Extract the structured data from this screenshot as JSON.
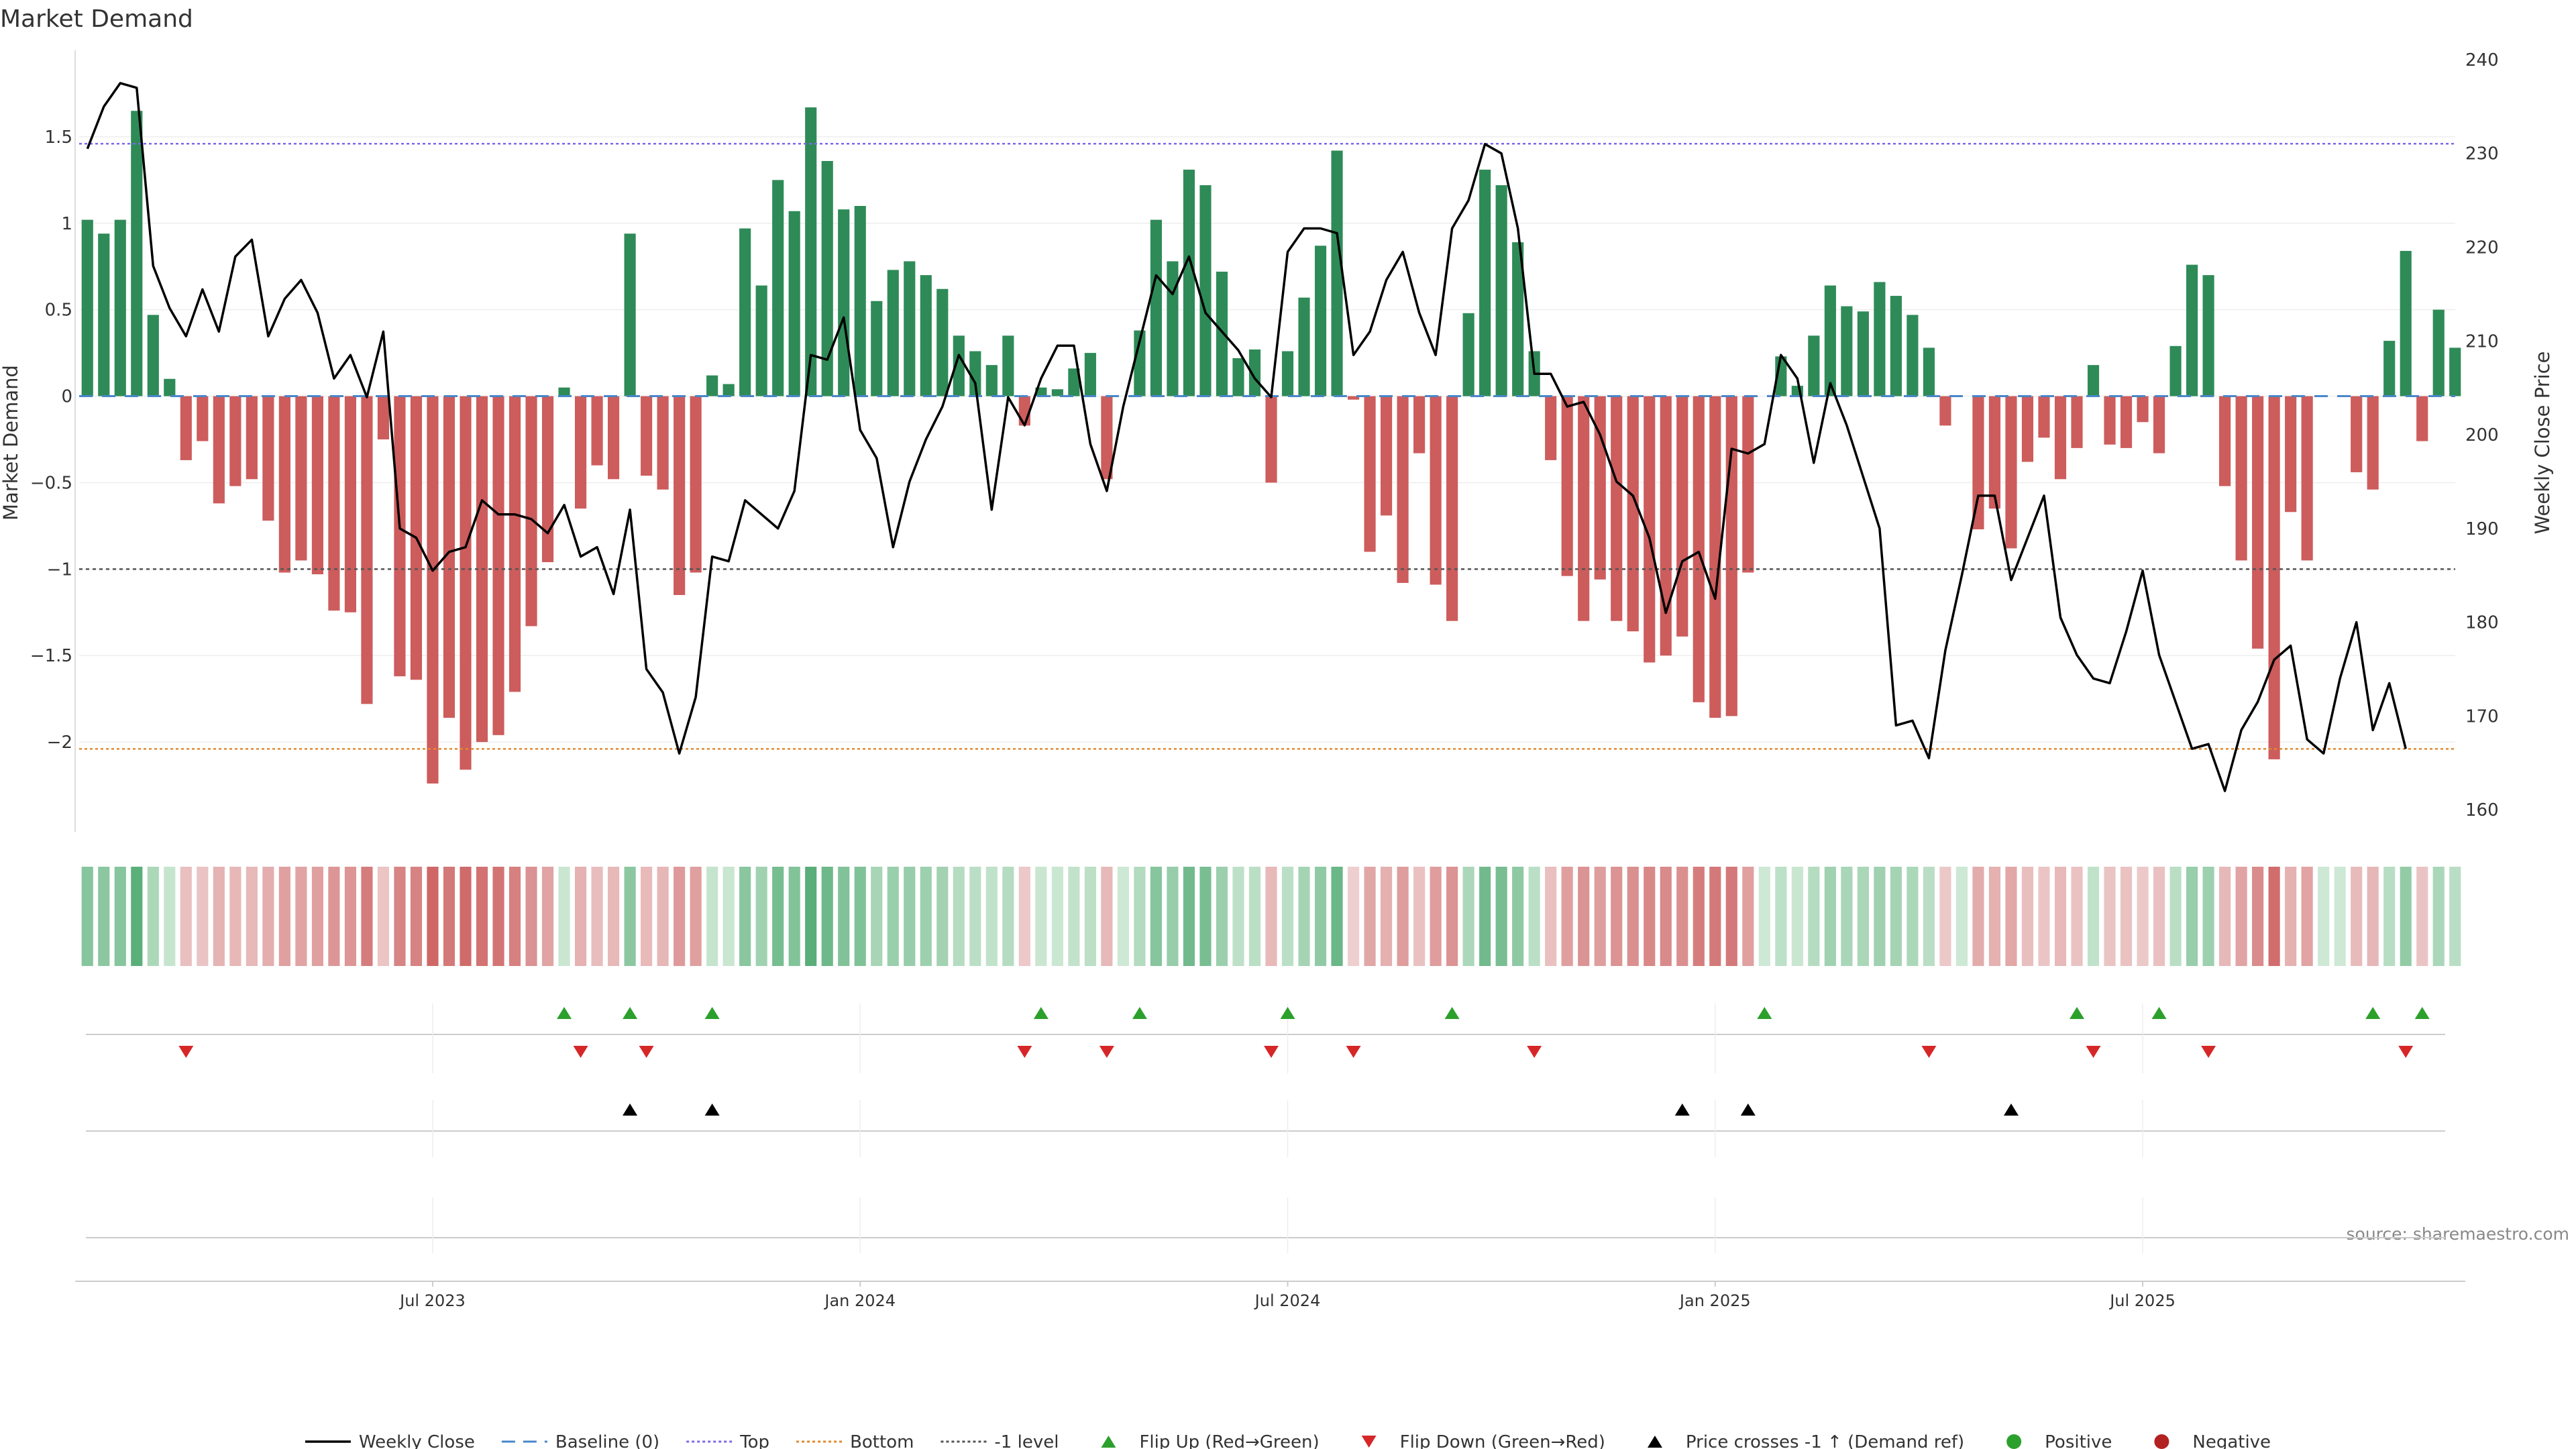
{
  "chart_data": {
    "type": "bar",
    "title": "Market Demand",
    "ylabel": "Market Demand",
    "y2label": "Weekly Close Price",
    "source": "source: sharemaestro.com",
    "ylim": [
      -2.5,
      2.0
    ],
    "y2lim": [
      158,
      241
    ],
    "y_ticks": [
      1.5,
      1,
      0.5,
      0,
      -0.5,
      -1,
      -1.5,
      -2
    ],
    "y_tick_labels": [
      "1.5",
      "1",
      "0.5",
      "0",
      "−0.5",
      "−1",
      "−1.5",
      "−2"
    ],
    "y2_ticks": [
      160,
      170,
      180,
      190,
      200,
      210,
      220,
      230,
      240
    ],
    "x_ticks": [
      {
        "label": "Jul 2023",
        "week": 21
      },
      {
        "label": "Jan 2024",
        "week": 47
      },
      {
        "label": "Jul 2024",
        "week": 73
      },
      {
        "label": "Jan 2025",
        "week": 99
      },
      {
        "label": "Jul 2025",
        "week": 125
      }
    ],
    "reference_lines": {
      "top": 1.46,
      "bottom": -2.04,
      "minus_one": -1,
      "baseline": 0
    },
    "colors": {
      "positive": "#2e8b57",
      "negative": "#cd5c5c",
      "price": "#000000",
      "top": "#7b68ee",
      "bottom": "#e08a2e",
      "minus_one": "#555555",
      "baseline": "#4a86c8",
      "flip_up": "#2ca02c",
      "flip_down": "#d62728",
      "cross": "#000000",
      "pos_dot": "#2ca02c",
      "neg_dot": "#b22222"
    },
    "demand": [
      1.02,
      0.94,
      1.02,
      1.65,
      0.47,
      0.1,
      -0.37,
      -0.26,
      -0.62,
      -0.52,
      -0.48,
      -0.72,
      -1.02,
      -0.95,
      -1.03,
      -1.24,
      -1.25,
      -1.78,
      -0.25,
      -1.62,
      -1.64,
      -2.24,
      -1.86,
      -2.16,
      -2.0,
      -1.96,
      -1.71,
      -1.33,
      -0.96,
      0.05,
      -0.65,
      -0.4,
      -0.48,
      0.94,
      -0.46,
      -0.54,
      -1.15,
      -1.02,
      0.12,
      0.07,
      0.97,
      0.64,
      1.25,
      1.07,
      1.67,
      1.36,
      1.08,
      1.1,
      0.55,
      0.73,
      0.78,
      0.7,
      0.62,
      0.35,
      0.26,
      0.18,
      0.35,
      -0.17,
      0.05,
      0.04,
      0.16,
      0.25,
      -0.48,
      0,
      0.38,
      1.02,
      0.78,
      1.31,
      1.22,
      0.72,
      0.22,
      0.27,
      -0.5,
      0.26,
      0.57,
      0.87,
      1.42,
      -0.02,
      -0.9,
      -0.69,
      -1.08,
      -0.33,
      -1.09,
      -1.3,
      0.48,
      1.31,
      1.22,
      0.89,
      0.26,
      -0.37,
      -1.04,
      -1.3,
      -1.06,
      -1.3,
      -1.36,
      -1.54,
      -1.5,
      -1.39,
      -1.77,
      -1.86,
      -1.85,
      -1.02,
      0,
      0.23,
      0.06,
      0.35,
      0.64,
      0.52,
      0.49,
      0.66,
      0.58,
      0.47,
      0.28,
      -0.17,
      0,
      -0.77,
      -0.65,
      -0.88,
      -0.38,
      -0.24,
      -0.48,
      -0.3,
      0.18,
      -0.28,
      -0.3,
      -0.15,
      -0.33,
      0.29,
      0.76,
      0.7,
      -0.52,
      -0.95,
      -1.46,
      -2.1,
      -0.67,
      -0.95,
      0,
      0,
      -0.44,
      -0.54,
      0.32,
      0.84,
      -0.26,
      0.5,
      0.28
    ],
    "price": [
      230.5,
      235,
      237.5,
      237,
      218,
      213.5,
      210.5,
      215.5,
      211,
      219,
      220.8,
      210.5,
      214.5,
      216.5,
      213,
      206,
      208.5,
      204,
      211,
      190,
      189,
      185.5,
      187.5,
      188,
      193,
      191.5,
      191.5,
      191,
      189.5,
      192.5,
      187,
      188,
      183,
      192,
      175,
      172.5,
      166,
      172,
      187,
      186.5,
      193,
      191.5,
      190,
      194,
      208.5,
      208,
      212.5,
      200.5,
      197.5,
      188,
      195,
      199.5,
      203,
      208.5,
      205.5,
      192,
      204,
      201,
      206,
      209.5,
      209.5,
      199,
      194,
      203,
      210,
      217,
      215,
      219,
      213,
      211,
      209,
      206,
      204,
      219.5,
      222,
      222,
      221.5,
      208.5,
      211,
      216.5,
      219.5,
      213,
      208.5,
      222,
      225,
      231,
      230,
      222,
      206.5,
      206.5,
      203,
      203.5,
      200,
      195,
      193.5,
      189,
      181,
      186.5,
      187.5,
      182.5,
      198.5,
      198,
      199,
      208.5,
      206,
      197,
      205.5,
      201,
      195.5,
      190,
      169,
      169.5,
      165.5,
      177,
      185,
      193.5,
      193.5,
      184.5,
      189,
      193.5,
      180.5,
      176.5,
      174,
      173.5,
      179,
      185.5,
      176.5,
      171.5,
      166.5,
      167,
      162,
      168.5,
      171.5,
      176,
      177.5,
      167.5,
      166,
      174,
      180,
      168.5,
      173.5,
      166.5
    ],
    "flip_up_weeks": [
      29,
      33,
      38,
      58,
      64,
      73,
      83,
      102,
      121,
      126,
      139,
      142
    ],
    "flip_down_weeks": [
      6,
      30,
      34,
      57,
      62,
      72,
      77,
      88,
      112,
      122,
      129,
      141
    ],
    "cross_weeks": [
      33,
      38,
      97,
      101,
      117
    ],
    "legend": [
      {
        "label": "Weekly Close",
        "kind": "line",
        "color": "#000000"
      },
      {
        "label": "Baseline (0)",
        "kind": "dash",
        "color": "#4a86c8"
      },
      {
        "label": "Top",
        "kind": "dot",
        "color": "#7b68ee"
      },
      {
        "label": "Bottom",
        "kind": "dot",
        "color": "#e08a2e"
      },
      {
        "label": "-1 level",
        "kind": "dot",
        "color": "#555555"
      },
      {
        "label": "Flip Up (Red→Green)",
        "kind": "tri-up",
        "color": "#2ca02c"
      },
      {
        "label": "Flip Down (Green→Red)",
        "kind": "tri-down",
        "color": "#d62728"
      },
      {
        "label": "Price crosses -1 ↑ (Demand ref)",
        "kind": "tri-up",
        "color": "#000000"
      },
      {
        "label": "Positive",
        "kind": "circle",
        "color": "#2ca02c"
      },
      {
        "label": "Negative",
        "kind": "circle",
        "color": "#b22222"
      }
    ]
  }
}
